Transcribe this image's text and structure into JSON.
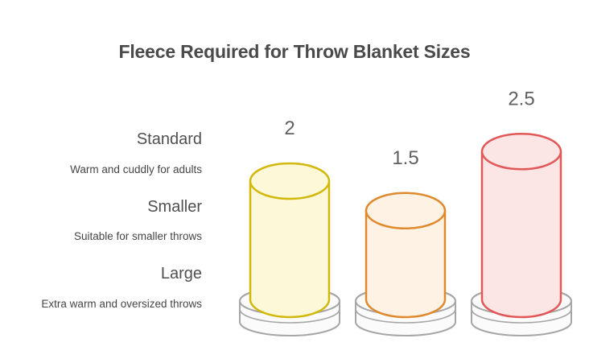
{
  "chart_data": {
    "type": "bar",
    "style": "3d-cylinder-pictogram",
    "title": "Fleece Required for Throw Blanket Sizes",
    "categories": [
      "Standard",
      "Smaller",
      "Large"
    ],
    "descriptions": [
      "Warm and cuddly for adults",
      "Suitable for smaller throws",
      "Extra warm and oversized throws"
    ],
    "values": [
      2,
      1.5,
      2.5
    ],
    "value_labels": [
      "2",
      "1.5",
      "2.5"
    ],
    "ylim": [
      0,
      2.5
    ],
    "grid": false,
    "legend_position": "left",
    "colors": {
      "title_text": "#4a4a4a",
      "category_text": "#4f4f4f",
      "description_text": "#454545",
      "value_text": "#5f5f5f",
      "pedestal_fill": "#fbfbfb",
      "pedestal_stroke": "#a6a6a6",
      "series": [
        {
          "name": "Standard",
          "stroke": "#d2b80b",
          "fill": "#fdf9d8"
        },
        {
          "name": "Smaller",
          "stroke": "#e08a2f",
          "fill": "#fdf2e4"
        },
        {
          "name": "Large",
          "stroke": "#e25858",
          "fill": "#fbe5e5"
        }
      ]
    }
  }
}
